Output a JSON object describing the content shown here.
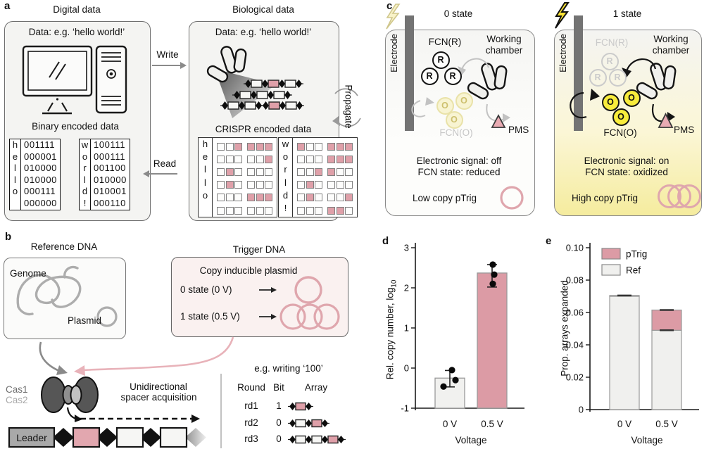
{
  "figure": {
    "panel_a": {
      "label": "a",
      "digital_title": "Digital data",
      "bio_title": "Biological data",
      "data_example": "Data: e.g. ‘hello world!’",
      "binary_caption": "Binary encoded data",
      "crispr_caption": "CRISPR encoded data",
      "write": "Write",
      "read": "Read",
      "propagate": "Propagate",
      "words": [
        {
          "letters": [
            "h",
            "e",
            "l",
            "l",
            "o",
            " "
          ],
          "codes": [
            "001111",
            "000001",
            "010000",
            "010000",
            "000111",
            "000000"
          ]
        },
        {
          "letters": [
            "w",
            "o",
            "r",
            "l",
            "d",
            "!"
          ],
          "codes": [
            "100111",
            "000111",
            "001100",
            "010000",
            "010001",
            "000110"
          ]
        }
      ],
      "bio_array_patterns": [
        [
          "d",
          "s0",
          "d",
          "s1",
          "d",
          "s0",
          "d"
        ],
        [
          "d",
          "s0",
          "d",
          "s0",
          "d",
          "s0",
          "d"
        ],
        [
          "d",
          "s0",
          "d",
          "s0",
          "d"
        ],
        [
          "d",
          "s1",
          "d",
          "s0",
          "d"
        ]
      ]
    },
    "panel_b": {
      "label": "b",
      "reference_title": "Reference DNA",
      "genome": "Genome",
      "plasmid": "Plasmid",
      "trigger_title": "Trigger DNA",
      "trigger_subtitle": "Copy inducible plasmid",
      "trigger_rows": [
        {
          "label": "0 state (0 V)",
          "plasmid_copies": 1
        },
        {
          "label": "1 state (0.5 V)",
          "plasmid_copies": 3
        }
      ],
      "cas1": "Cas1",
      "cas2": "Cas2",
      "acquisition_line1": "Unidirectional",
      "acquisition_line2": "spacer acquisition",
      "leader": "Leader",
      "leader_pattern": [
        "diamond",
        "spacer-1",
        "diamond",
        "spacer-0",
        "diamond",
        "spacer-0",
        "diamond-fade"
      ],
      "writing": {
        "title": "e.g. writing ‘100’",
        "headers": [
          "Round",
          "Bit",
          "Array"
        ],
        "rows": [
          {
            "round": "rd1",
            "bit": "1",
            "pattern": [
              "d",
              "s1",
              "d"
            ]
          },
          {
            "round": "rd2",
            "bit": "0",
            "pattern": [
              "d",
              "s0",
              "d",
              "s1",
              "d"
            ]
          },
          {
            "round": "rd3",
            "bit": "0",
            "pattern": [
              "d",
              "s0",
              "d",
              "s0",
              "d",
              "s1",
              "d"
            ]
          }
        ]
      }
    },
    "panel_c": {
      "label": "c",
      "states": [
        {
          "title": "0 state",
          "electrode": "Electrode",
          "fcn_r": "FCN(R)",
          "chamber_line1": "Working",
          "chamber_line2": "chamber",
          "fcn_o": "FCN(O)",
          "pms": "PMS",
          "r_letter": "R",
          "o_letter": "O",
          "signal_line1": "Electronic signal: off",
          "signal_line2": "FCN state: reduced",
          "copy_label": "Low copy pTrig"
        },
        {
          "title": "1 state",
          "electrode": "Electrode",
          "fcn_r": "FCN(R)",
          "chamber_line1": "Working",
          "chamber_line2": "chamber",
          "fcn_o": "FCN(O)",
          "pms": "PMS",
          "r_letter": "R",
          "o_letter": "O",
          "signal_line1": "Electronic signal: on",
          "signal_line2": "FCN state: oxidized",
          "copy_label": "High copy pTrig"
        }
      ]
    },
    "panel_d_label": "d",
    "panel_e_label": "e",
    "colors": {
      "pink": "#dc9ba5",
      "pink_cell": "#dfa0a9",
      "pink_ring": "#dfa6ad",
      "yellow": "#f8ec3c",
      "yellow_pale": "#f8f4d2",
      "gray_bar": "#f1f1ef",
      "panel_bg": "#f4f4f2",
      "electrode": "#737373"
    }
  },
  "chart_data": [
    {
      "panel": "d",
      "type": "bar",
      "categories": [
        "0 V",
        "0.5 V"
      ],
      "values": [
        -0.25,
        2.37
      ],
      "points": [
        [
          -0.05,
          -0.3,
          -0.46
        ],
        [
          2.58,
          2.33,
          2.1
        ]
      ],
      "error_bars": [
        [
          -0.47,
          -0.06
        ],
        [
          2.02,
          2.58
        ]
      ],
      "bar_colors": [
        "#f1f1ef",
        "#dc9ba5"
      ],
      "xlabel": "Voltage",
      "ylabel_main": "Rel. copy number, log",
      "ylabel_sub": "10",
      "ylim": [
        -1,
        3
      ],
      "yticks": [
        3,
        2,
        1,
        0,
        -1
      ],
      "grid": false
    },
    {
      "panel": "e",
      "type": "stacked-bar",
      "categories": [
        "0 V",
        "0.5 V"
      ],
      "series": [
        {
          "name": "pTrig",
          "color": "#dc9ba5",
          "values": [
            0.0005,
            0.0125
          ]
        },
        {
          "name": "Ref",
          "color": "#f0f0ee",
          "values": [
            0.07,
            0.049
          ]
        }
      ],
      "totals": [
        0.0705,
        0.0615
      ],
      "error_caps": [
        [
          0.0705
        ],
        [
          0.049,
          0.0615
        ]
      ],
      "xlabel": "Voltage",
      "ylabel": "Prop. arrays expanded",
      "ylim": [
        0,
        0.1
      ],
      "yticks": [
        0.1,
        0.08,
        0.06,
        0.04,
        0.02,
        0
      ],
      "legend": [
        "pTrig",
        "Ref"
      ],
      "legend_position": "top-left"
    }
  ]
}
